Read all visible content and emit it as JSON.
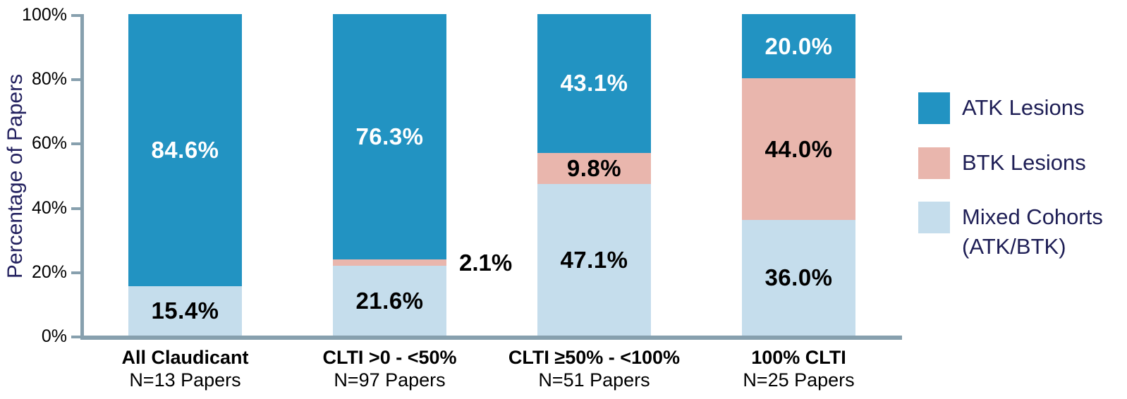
{
  "chart_data": {
    "type": "bar",
    "stacked": true,
    "ylabel": "Percentage of Papers",
    "ylim": [
      0,
      100
    ],
    "grid": false,
    "legend_position": "right",
    "ytick_labels": [
      "0%",
      "20%",
      "40%",
      "60%",
      "80%",
      "100%"
    ],
    "ytick_values": [
      0,
      20,
      40,
      60,
      80,
      100
    ],
    "categories": [
      {
        "label": "All Claudicant",
        "sublabel": "N=13 Papers"
      },
      {
        "label": "CLTI >0 - <50%",
        "sublabel": "N=97 Papers"
      },
      {
        "label": "CLTI ≥50% - <100%",
        "sublabel": "N=51 Papers"
      },
      {
        "label": "100% CLTI",
        "sublabel": "N=25 Papers"
      }
    ],
    "series": [
      {
        "name": "ATK Lesions",
        "color": "#2293c2",
        "label_color": "#ffffff",
        "values": [
          84.6,
          76.3,
          43.1,
          20.0
        ],
        "labels": [
          "84.6%",
          "76.3%",
          "43.1%",
          "20.0%"
        ],
        "label_outside": [
          false,
          false,
          false,
          false
        ]
      },
      {
        "name": "BTK Lesions",
        "color": "#e9b6ad",
        "label_color": "#000000",
        "values": [
          0,
          2.1,
          9.8,
          44.0
        ],
        "labels": [
          null,
          "2.1%",
          "9.8%",
          "44.0%"
        ],
        "label_outside": [
          false,
          true,
          false,
          false
        ]
      },
      {
        "name": "Mixed Cohorts (ATK/BTK)",
        "color": "#c5ddec",
        "label_color": "#000000",
        "values": [
          15.4,
          21.6,
          47.1,
          36.0
        ],
        "labels": [
          "15.4%",
          "21.6%",
          "47.1%",
          "36.0%"
        ],
        "label_outside": [
          false,
          false,
          false,
          false
        ]
      }
    ]
  },
  "legend": {
    "entries": [
      {
        "name": "ATK Lesions",
        "lines": "ATK Lesions",
        "color": "#2293c2"
      },
      {
        "name": "BTK Lesions",
        "lines": "BTK Lesions",
        "color": "#e9b6ad"
      },
      {
        "name": "Mixed Cohorts (ATK/BTK)",
        "lines": "Mixed Cohorts\n(ATK/BTK)",
        "color": "#c5ddec"
      }
    ]
  },
  "colors": {
    "atk_blue": "#2293c2",
    "btk_pink": "#e9b6ad",
    "mixed_light_blue": "#c5ddec",
    "axis": "#87a0ae",
    "axis_text": "#000000",
    "title_navy": "#23215f"
  }
}
